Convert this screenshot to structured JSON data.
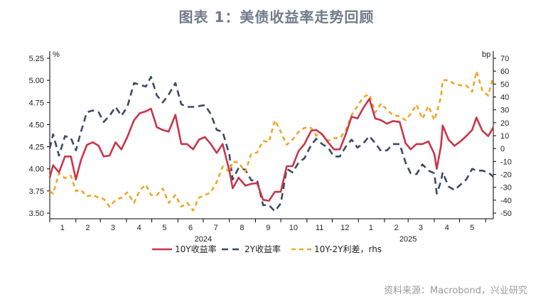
{
  "title": "图表 1：美债收益率走势回顾",
  "source": "资料来源：Macrobond，兴业研究",
  "chart_data": {
    "type": "line",
    "left_axis": {
      "unit": "%",
      "ylim": [
        3.5,
        5.25
      ],
      "ticks": [
        "3.50",
        "3.75",
        "4.00",
        "4.25",
        "4.50",
        "4.75",
        "5.00",
        "5.25"
      ]
    },
    "right_axis": {
      "unit": "bp",
      "ylim": [
        -50,
        70
      ],
      "ticks": [
        "-50",
        "-40",
        "-30",
        "-20",
        "-10",
        "0",
        "10",
        "20",
        "30",
        "40",
        "50",
        "60",
        "70"
      ]
    },
    "x_axis": {
      "month_labels": [
        "1",
        "2",
        "3",
        "4",
        "5",
        "6",
        "7",
        "8",
        "9",
        "10",
        "11",
        "12",
        "1",
        "2",
        "3",
        "4",
        "5"
      ],
      "year_labels": [
        "2024",
        "2025"
      ],
      "range": [
        "2024-01-01",
        "2025-06-10"
      ]
    },
    "legend_position": "bottom",
    "series": [
      {
        "name": "10Y收益率",
        "axis": "left",
        "color": "#c8354a",
        "dash": "solid",
        "points": [
          [
            "2024-01-01",
            3.9
          ],
          [
            "2024-01-05",
            4.04
          ],
          [
            "2024-01-12",
            3.96
          ],
          [
            "2024-01-19",
            4.14
          ],
          [
            "2024-01-26",
            4.14
          ],
          [
            "2024-02-01",
            3.88
          ],
          [
            "2024-02-07",
            4.1
          ],
          [
            "2024-02-14",
            4.27
          ],
          [
            "2024-02-21",
            4.3
          ],
          [
            "2024-02-28",
            4.26
          ],
          [
            "2024-03-05",
            4.14
          ],
          [
            "2024-03-12",
            4.15
          ],
          [
            "2024-03-19",
            4.3
          ],
          [
            "2024-03-26",
            4.22
          ],
          [
            "2024-04-02",
            4.36
          ],
          [
            "2024-04-10",
            4.55
          ],
          [
            "2024-04-17",
            4.63
          ],
          [
            "2024-04-24",
            4.65
          ],
          [
            "2024-04-30",
            4.68
          ],
          [
            "2024-05-07",
            4.47
          ],
          [
            "2024-05-14",
            4.44
          ],
          [
            "2024-05-21",
            4.42
          ],
          [
            "2024-05-29",
            4.61
          ],
          [
            "2024-06-05",
            4.28
          ],
          [
            "2024-06-12",
            4.28
          ],
          [
            "2024-06-19",
            4.22
          ],
          [
            "2024-06-26",
            4.33
          ],
          [
            "2024-07-03",
            4.36
          ],
          [
            "2024-07-10",
            4.28
          ],
          [
            "2024-07-17",
            4.18
          ],
          [
            "2024-07-24",
            4.28
          ],
          [
            "2024-08-01",
            3.98
          ],
          [
            "2024-08-05",
            3.78
          ],
          [
            "2024-08-12",
            3.9
          ],
          [
            "2024-08-20",
            3.81
          ],
          [
            "2024-08-27",
            3.83
          ],
          [
            "2024-09-03",
            3.84
          ],
          [
            "2024-09-10",
            3.65
          ],
          [
            "2024-09-17",
            3.64
          ],
          [
            "2024-09-24",
            3.74
          ],
          [
            "2024-10-01",
            3.74
          ],
          [
            "2024-10-08",
            4.03
          ],
          [
            "2024-10-15",
            4.03
          ],
          [
            "2024-10-22",
            4.2
          ],
          [
            "2024-10-29",
            4.28
          ],
          [
            "2024-11-06",
            4.43
          ],
          [
            "2024-11-12",
            4.44
          ],
          [
            "2024-11-19",
            4.39
          ],
          [
            "2024-11-26",
            4.3
          ],
          [
            "2024-12-03",
            4.22
          ],
          [
            "2024-12-10",
            4.22
          ],
          [
            "2024-12-17",
            4.39
          ],
          [
            "2024-12-24",
            4.59
          ],
          [
            "2024-12-31",
            4.57
          ],
          [
            "2025-01-07",
            4.69
          ],
          [
            "2025-01-14",
            4.79
          ],
          [
            "2025-01-21",
            4.57
          ],
          [
            "2025-01-28",
            4.55
          ],
          [
            "2025-02-04",
            4.51
          ],
          [
            "2025-02-11",
            4.54
          ],
          [
            "2025-02-19",
            4.53
          ],
          [
            "2025-02-26",
            4.29
          ],
          [
            "2025-03-04",
            4.22
          ],
          [
            "2025-03-11",
            4.28
          ],
          [
            "2025-03-18",
            4.28
          ],
          [
            "2025-03-25",
            4.31
          ],
          [
            "2025-04-01",
            4.17
          ],
          [
            "2025-04-04",
            4.0
          ],
          [
            "2025-04-09",
            4.26
          ],
          [
            "2025-04-11",
            4.49
          ],
          [
            "2025-04-18",
            4.33
          ],
          [
            "2025-04-25",
            4.26
          ],
          [
            "2025-05-02",
            4.31
          ],
          [
            "2025-05-09",
            4.37
          ],
          [
            "2025-05-16",
            4.44
          ],
          [
            "2025-05-21",
            4.58
          ],
          [
            "2025-05-28",
            4.43
          ],
          [
            "2025-06-04",
            4.37
          ],
          [
            "2025-06-10",
            4.47
          ]
        ]
      },
      {
        "name": "2Y收益率",
        "axis": "left",
        "color": "#3b4a66",
        "dash": "long",
        "points": [
          [
            "2024-01-01",
            4.23
          ],
          [
            "2024-01-05",
            4.39
          ],
          [
            "2024-01-12",
            4.15
          ],
          [
            "2024-01-19",
            4.37
          ],
          [
            "2024-01-26",
            4.35
          ],
          [
            "2024-02-01",
            4.21
          ],
          [
            "2024-02-07",
            4.42
          ],
          [
            "2024-02-14",
            4.64
          ],
          [
            "2024-02-21",
            4.66
          ],
          [
            "2024-02-28",
            4.64
          ],
          [
            "2024-03-05",
            4.53
          ],
          [
            "2024-03-12",
            4.6
          ],
          [
            "2024-03-19",
            4.7
          ],
          [
            "2024-03-26",
            4.6
          ],
          [
            "2024-04-02",
            4.7
          ],
          [
            "2024-04-10",
            4.97
          ],
          [
            "2024-04-17",
            4.95
          ],
          [
            "2024-04-24",
            4.93
          ],
          [
            "2024-04-30",
            5.04
          ],
          [
            "2024-05-07",
            4.83
          ],
          [
            "2024-05-14",
            4.75
          ],
          [
            "2024-05-21",
            4.84
          ],
          [
            "2024-05-29",
            4.97
          ],
          [
            "2024-06-05",
            4.73
          ],
          [
            "2024-06-12",
            4.7
          ],
          [
            "2024-06-19",
            4.7
          ],
          [
            "2024-06-26",
            4.71
          ],
          [
            "2024-07-03",
            4.72
          ],
          [
            "2024-07-10",
            4.62
          ],
          [
            "2024-07-17",
            4.44
          ],
          [
            "2024-07-24",
            4.42
          ],
          [
            "2024-08-01",
            4.16
          ],
          [
            "2024-08-05",
            3.88
          ],
          [
            "2024-08-12",
            4.01
          ],
          [
            "2024-08-20",
            3.99
          ],
          [
            "2024-08-27",
            3.87
          ],
          [
            "2024-09-03",
            3.87
          ],
          [
            "2024-09-10",
            3.59
          ],
          [
            "2024-09-17",
            3.59
          ],
          [
            "2024-09-24",
            3.52
          ],
          [
            "2024-10-01",
            3.61
          ],
          [
            "2024-10-08",
            4.0
          ],
          [
            "2024-10-15",
            3.96
          ],
          [
            "2024-10-22",
            4.07
          ],
          [
            "2024-10-29",
            4.12
          ],
          [
            "2024-11-06",
            4.27
          ],
          [
            "2024-11-12",
            4.34
          ],
          [
            "2024-11-19",
            4.28
          ],
          [
            "2024-11-26",
            4.24
          ],
          [
            "2024-12-03",
            4.14
          ],
          [
            "2024-12-10",
            4.14
          ],
          [
            "2024-12-17",
            4.25
          ],
          [
            "2024-12-24",
            4.33
          ],
          [
            "2024-12-31",
            4.24
          ],
          [
            "2025-01-07",
            4.29
          ],
          [
            "2025-01-14",
            4.37
          ],
          [
            "2025-01-21",
            4.29
          ],
          [
            "2025-01-28",
            4.2
          ],
          [
            "2025-02-04",
            4.21
          ],
          [
            "2025-02-11",
            4.28
          ],
          [
            "2025-02-19",
            4.28
          ],
          [
            "2025-02-26",
            4.07
          ],
          [
            "2025-03-04",
            3.95
          ],
          [
            "2025-03-11",
            3.94
          ],
          [
            "2025-03-18",
            4.05
          ],
          [
            "2025-03-25",
            3.98
          ],
          [
            "2025-04-01",
            3.95
          ],
          [
            "2025-04-04",
            3.72
          ],
          [
            "2025-04-09",
            3.86
          ],
          [
            "2025-04-11",
            3.96
          ],
          [
            "2025-04-18",
            3.8
          ],
          [
            "2025-04-25",
            3.76
          ],
          [
            "2025-05-02",
            3.82
          ],
          [
            "2025-05-09",
            3.88
          ],
          [
            "2025-05-16",
            4.0
          ],
          [
            "2025-05-21",
            3.98
          ],
          [
            "2025-05-28",
            3.98
          ],
          [
            "2025-06-04",
            3.96
          ],
          [
            "2025-06-10",
            3.91
          ]
        ]
      },
      {
        "name": "10Y-2Y利差，rhs",
        "axis": "right",
        "color": "#f0a626",
        "dash": "short",
        "points": [
          [
            "2024-01-01",
            -33
          ],
          [
            "2024-01-05",
            -35
          ],
          [
            "2024-01-12",
            -19
          ],
          [
            "2024-01-19",
            -23
          ],
          [
            "2024-01-26",
            -21
          ],
          [
            "2024-02-01",
            -33
          ],
          [
            "2024-02-07",
            -32
          ],
          [
            "2024-02-14",
            -37
          ],
          [
            "2024-02-21",
            -36
          ],
          [
            "2024-02-28",
            -38
          ],
          [
            "2024-03-05",
            -39
          ],
          [
            "2024-03-12",
            -45
          ],
          [
            "2024-03-19",
            -40
          ],
          [
            "2024-03-26",
            -38
          ],
          [
            "2024-04-02",
            -34
          ],
          [
            "2024-04-10",
            -42
          ],
          [
            "2024-04-17",
            -32
          ],
          [
            "2024-04-24",
            -28
          ],
          [
            "2024-04-30",
            -36
          ],
          [
            "2024-05-07",
            -36
          ],
          [
            "2024-05-14",
            -31
          ],
          [
            "2024-05-21",
            -42
          ],
          [
            "2024-05-29",
            -36
          ],
          [
            "2024-06-05",
            -45
          ],
          [
            "2024-06-12",
            -42
          ],
          [
            "2024-06-19",
            -48
          ],
          [
            "2024-06-26",
            -38
          ],
          [
            "2024-07-03",
            -36
          ],
          [
            "2024-07-10",
            -34
          ],
          [
            "2024-07-17",
            -26
          ],
          [
            "2024-07-24",
            -14
          ],
          [
            "2024-08-01",
            -18
          ],
          [
            "2024-08-05",
            -10
          ],
          [
            "2024-08-12",
            -11
          ],
          [
            "2024-08-20",
            -18
          ],
          [
            "2024-08-27",
            -4
          ],
          [
            "2024-09-03",
            -3
          ],
          [
            "2024-09-10",
            6
          ],
          [
            "2024-09-17",
            5
          ],
          [
            "2024-09-24",
            22
          ],
          [
            "2024-10-01",
            13
          ],
          [
            "2024-10-08",
            3
          ],
          [
            "2024-10-15",
            7
          ],
          [
            "2024-10-22",
            13
          ],
          [
            "2024-10-29",
            16
          ],
          [
            "2024-11-06",
            16
          ],
          [
            "2024-11-12",
            10
          ],
          [
            "2024-11-19",
            11
          ],
          [
            "2024-11-26",
            6
          ],
          [
            "2024-12-03",
            8
          ],
          [
            "2024-12-10",
            8
          ],
          [
            "2024-12-17",
            14
          ],
          [
            "2024-12-24",
            26
          ],
          [
            "2024-12-31",
            33
          ],
          [
            "2025-01-07",
            40
          ],
          [
            "2025-01-14",
            42
          ],
          [
            "2025-01-21",
            28
          ],
          [
            "2025-01-28",
            35
          ],
          [
            "2025-02-04",
            30
          ],
          [
            "2025-02-11",
            26
          ],
          [
            "2025-02-19",
            25
          ],
          [
            "2025-02-26",
            22
          ],
          [
            "2025-03-04",
            27
          ],
          [
            "2025-03-11",
            34
          ],
          [
            "2025-03-18",
            23
          ],
          [
            "2025-03-25",
            33
          ],
          [
            "2025-04-01",
            22
          ],
          [
            "2025-04-04",
            28
          ],
          [
            "2025-04-09",
            40
          ],
          [
            "2025-04-11",
            53
          ],
          [
            "2025-04-18",
            53
          ],
          [
            "2025-04-25",
            50
          ],
          [
            "2025-05-02",
            49
          ],
          [
            "2025-05-09",
            49
          ],
          [
            "2025-05-16",
            44
          ],
          [
            "2025-05-21",
            60
          ],
          [
            "2025-05-28",
            45
          ],
          [
            "2025-06-04",
            41
          ],
          [
            "2025-06-10",
            56
          ]
        ]
      }
    ]
  }
}
